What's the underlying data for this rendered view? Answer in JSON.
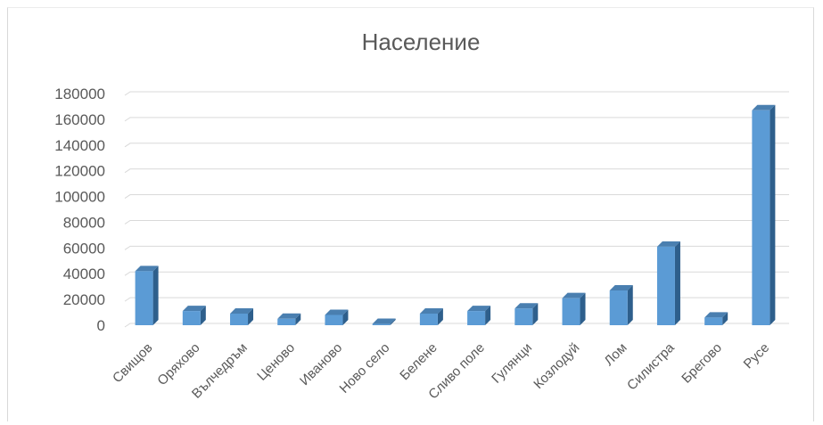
{
  "chart_data": {
    "type": "bar",
    "title": "Население",
    "xlabel": "",
    "ylabel": "",
    "ylim": [
      0,
      180000
    ],
    "yticks": [
      0,
      20000,
      40000,
      60000,
      80000,
      100000,
      120000,
      140000,
      160000,
      180000
    ],
    "grid": true,
    "legend": "none",
    "bar_color": "#5B9BD5",
    "bar_side_color": "#2E5F8C",
    "bar_top_color": "#4A7FB0",
    "categories": [
      "Свищов",
      "Оряхово",
      "Вълчедръм",
      "Ценово",
      "Иваново",
      "Ново село",
      "Белене",
      "Сливо поле",
      "Гулянци",
      "Козлодуй",
      "Лом",
      "Силистра",
      "Брегово",
      "Русе"
    ],
    "values": [
      42000,
      11000,
      9000,
      5000,
      8000,
      1000,
      9000,
      11000,
      13000,
      21000,
      27000,
      61000,
      6000,
      167000
    ]
  }
}
